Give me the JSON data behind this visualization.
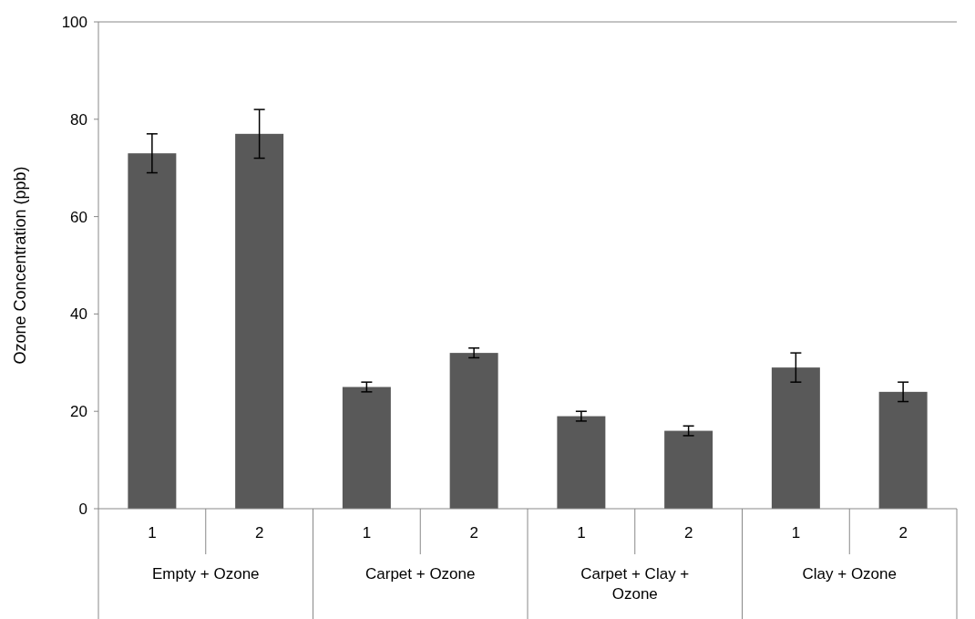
{
  "chart_data": {
    "type": "bar",
    "ylabel": "Ozone Concentration (ppb)",
    "categories": [
      "1",
      "2",
      "1",
      "2",
      "1",
      "2",
      "1",
      "2"
    ],
    "values": [
      73,
      77,
      25,
      32,
      19,
      16,
      29,
      24
    ],
    "errors": [
      4,
      5,
      1,
      1,
      1,
      1,
      3,
      2
    ],
    "color": "#595959",
    "ylim": [
      0,
      100
    ],
    "yticks": [
      0,
      20,
      40,
      60,
      80,
      100
    ],
    "grid": false,
    "annotations": [
      "Empty + Ozone",
      "Carpet + Ozone",
      "Carpet + Clay + Ozone",
      "Clay + Ozone"
    ]
  }
}
